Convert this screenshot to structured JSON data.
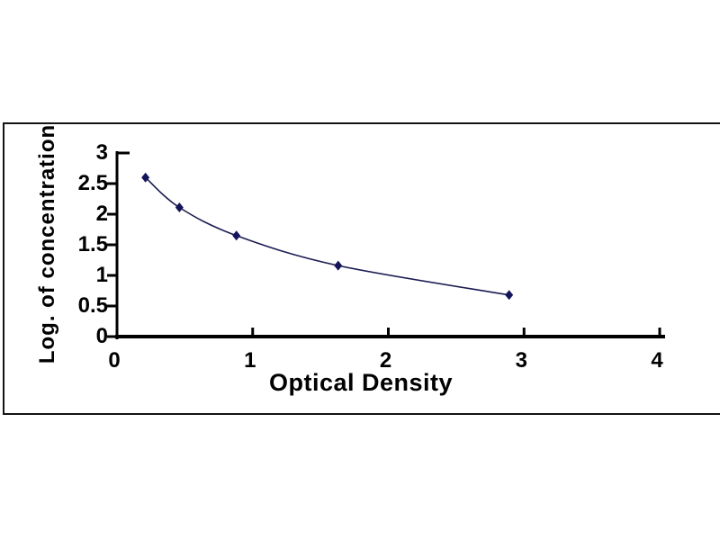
{
  "chart_data": {
    "type": "line",
    "title": "",
    "xlabel": "Optical Density",
    "ylabel": "Log. of concentration",
    "x": [
      0.21,
      0.46,
      0.88,
      1.63,
      2.89
    ],
    "y": [
      2.6,
      2.11,
      1.65,
      1.16,
      0.68
    ],
    "xlim": [
      0,
      4
    ],
    "ylim": [
      0,
      3
    ],
    "x_tick_values": [
      0,
      1,
      2,
      3,
      4
    ],
    "x_tick_labels": [
      "0",
      "1",
      "2",
      "3",
      "4"
    ],
    "y_tick_values": [
      0,
      0.5,
      1,
      1.5,
      2,
      2.5,
      3
    ],
    "y_tick_labels": [
      "0",
      "0.5",
      "1",
      "1.5",
      "2",
      "2.5",
      "3"
    ],
    "grid": false,
    "legend": "none",
    "marker": "diamond",
    "colors": {
      "curve": "#1c1c52",
      "marker": "#14145a",
      "axis": "#000000",
      "text": "#000000",
      "frame": "#141414",
      "background": "#ffffff"
    }
  }
}
